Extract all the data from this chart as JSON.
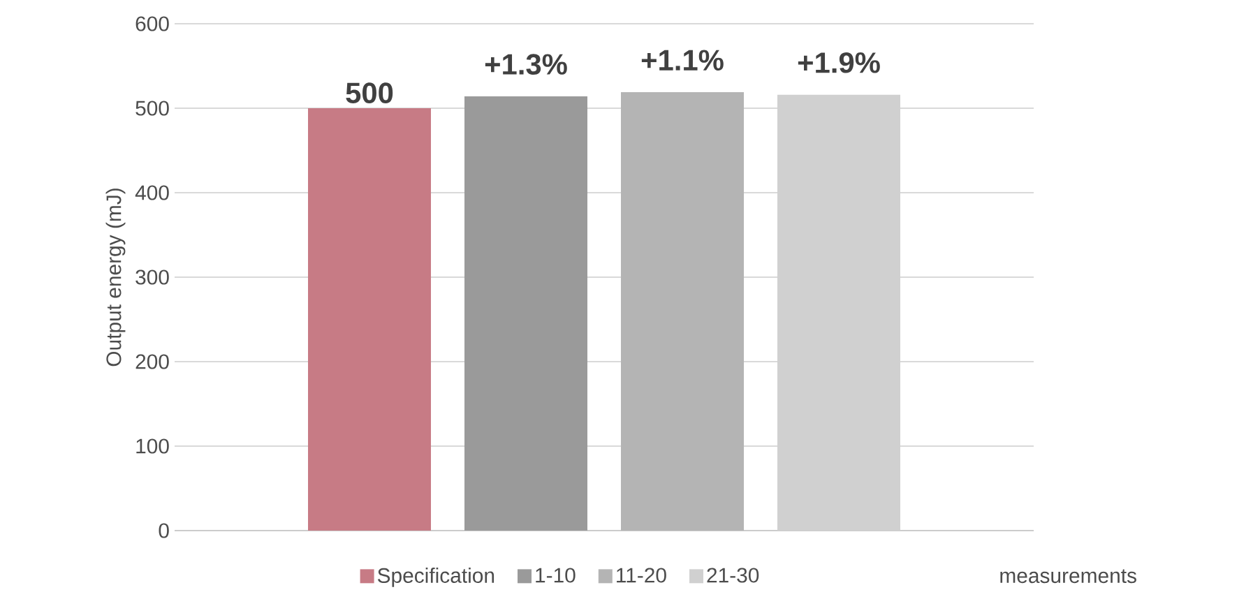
{
  "chart_data": {
    "type": "bar",
    "ylabel": "Output energy (mJ)",
    "categories": [
      null
    ],
    "series": [
      {
        "name": "Specification",
        "color": "#c77b85",
        "values": [
          500
        ],
        "value_labels": [
          "500"
        ]
      },
      {
        "name": "1-10",
        "color": "#9a9a9a",
        "values": [
          514
        ]
      },
      {
        "name": "11-20",
        "color": "#b4b4b4",
        "values": [
          519
        ]
      },
      {
        "name": "21-30",
        "color": "#d0d0d0",
        "values": [
          516
        ]
      }
    ],
    "ylim": [
      0,
      600
    ],
    "yticks": [
      0,
      100,
      200,
      300,
      400,
      500,
      600
    ],
    "grid": "y",
    "legend": "bottom",
    "annotations": [
      "+1.3%",
      "+1.1%",
      "+1.9%",
      "measurements"
    ]
  }
}
